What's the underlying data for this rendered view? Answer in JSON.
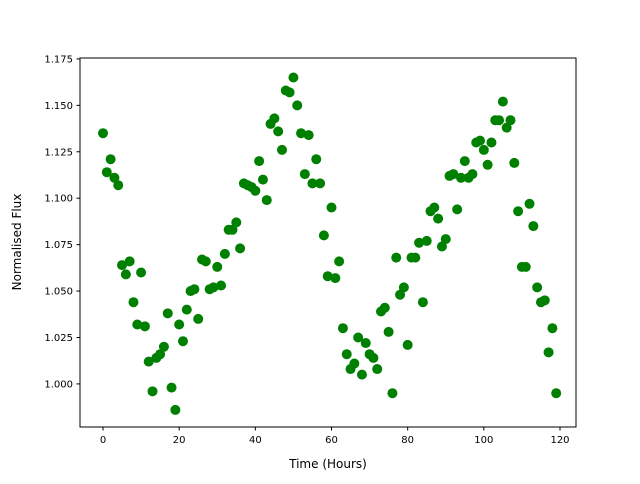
{
  "chart_data": {
    "type": "scatter",
    "title": "",
    "xlabel": "Time (Hours)",
    "ylabel": "Normalised Flux",
    "xlim": [
      -6.04,
      124.2
    ],
    "ylim": [
      0.9768,
      1.1755
    ],
    "xticks": [
      0,
      20,
      40,
      60,
      80,
      100,
      120
    ],
    "yticks": [
      1.0,
      1.025,
      1.05,
      1.075,
      1.1,
      1.125,
      1.15,
      1.175
    ],
    "ytick_labels": [
      "1.000",
      "1.025",
      "1.050",
      "1.075",
      "1.100",
      "1.125",
      "1.150",
      "1.175"
    ],
    "grid": false,
    "color": "#008000",
    "x": [
      0,
      1,
      2,
      3,
      4,
      5,
      6,
      7,
      8,
      9,
      10,
      11,
      12,
      13,
      14,
      15,
      16,
      17,
      18,
      19,
      20,
      21,
      22,
      23,
      24,
      25,
      26,
      27,
      28,
      29,
      30,
      31,
      32,
      33,
      34,
      35,
      36,
      37,
      38,
      39,
      40,
      41,
      42,
      43,
      44,
      45,
      46,
      47,
      48,
      49,
      50,
      51,
      52,
      53,
      54,
      55,
      56,
      57,
      58,
      59,
      60,
      61,
      62,
      63,
      64,
      65,
      66,
      67,
      68,
      69,
      70,
      71,
      72,
      73,
      74,
      75,
      76,
      77,
      78,
      79,
      80,
      81,
      82,
      83,
      84,
      85,
      86,
      87,
      88,
      89,
      90,
      91,
      92,
      93,
      94,
      95,
      96,
      97,
      98,
      99,
      100,
      101,
      102,
      103,
      104,
      105,
      106,
      107,
      108,
      109,
      110,
      111,
      112,
      113,
      114,
      115,
      116,
      117,
      118,
      119
    ],
    "y": [
      1.135,
      1.114,
      1.121,
      1.111,
      1.107,
      1.064,
      1.059,
      1.066,
      1.044,
      1.032,
      1.06,
      1.031,
      1.012,
      0.996,
      1.014,
      1.016,
      1.02,
      1.038,
      0.998,
      0.986,
      1.032,
      1.023,
      1.04,
      1.05,
      1.051,
      1.035,
      1.067,
      1.066,
      1.051,
      1.052,
      1.063,
      1.053,
      1.07,
      1.083,
      1.083,
      1.087,
      1.073,
      1.108,
      1.107,
      1.106,
      1.104,
      1.12,
      1.11,
      1.099,
      1.14,
      1.143,
      1.136,
      1.126,
      1.158,
      1.157,
      1.165,
      1.15,
      1.135,
      1.113,
      1.134,
      1.108,
      1.121,
      1.108,
      1.08,
      1.058,
      1.095,
      1.057,
      1.066,
      1.03,
      1.016,
      1.008,
      1.011,
      1.025,
      1.005,
      1.022,
      1.016,
      1.014,
      1.008,
      1.039,
      1.041,
      1.028,
      0.995,
      1.068,
      1.048,
      1.052,
      1.021,
      1.068,
      1.068,
      1.076,
      1.044,
      1.077,
      1.093,
      1.095,
      1.089,
      1.074,
      1.078,
      1.112,
      1.113,
      1.094,
      1.111,
      1.12,
      1.111,
      1.113,
      1.13,
      1.131,
      1.126,
      1.118,
      1.13,
      1.142,
      1.142,
      1.152,
      1.138,
      1.142,
      1.119,
      1.093,
      1.063,
      1.063,
      1.097,
      1.085,
      1.052,
      1.044,
      1.045,
      1.017,
      1.03,
      0.995
    ]
  }
}
